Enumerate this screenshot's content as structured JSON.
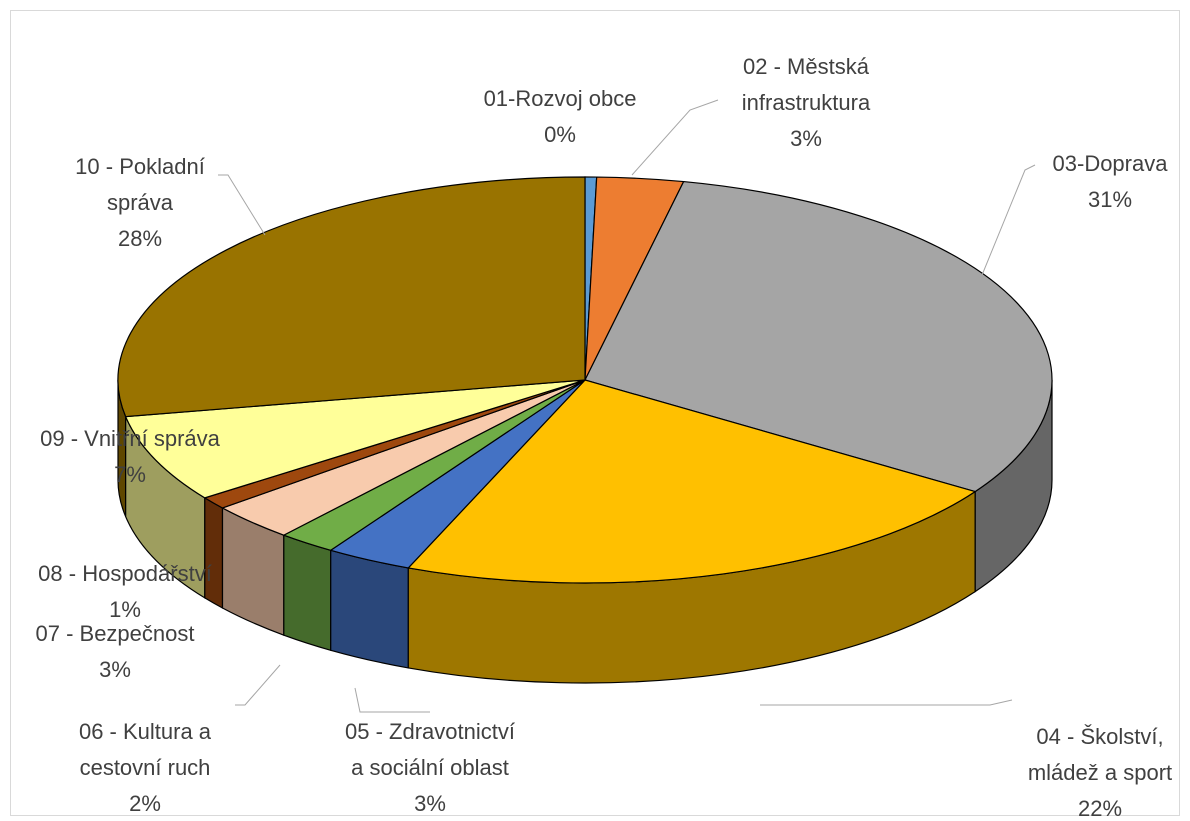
{
  "chart_data": {
    "type": "pie3d",
    "categories": [
      "01-Rozvoj obce",
      "02 - Městská\ninfrastruktura",
      "03-Doprava",
      "04 - Školství,\nmládež a sport",
      "05 - Zdravotnictví\na sociální oblast",
      "06 - Kultura a\ncestovní ruch",
      "07 - Bezpečnost",
      "08 - Hospodářství",
      "09 - Vnitřní správa",
      "10 - Pokladní\nspráva"
    ],
    "values": [
      0.4,
      3,
      31,
      22,
      3,
      2,
      3,
      1,
      7,
      28
    ],
    "value_labels": [
      "0%",
      "3%",
      "31%",
      "22%",
      "3%",
      "2%",
      "3%",
      "1%",
      "7%",
      "28%"
    ],
    "colors": [
      "#5b9bd5",
      "#ed7d31",
      "#a5a5a5",
      "#ffc000",
      "#4472c4",
      "#70ad47",
      "#f8cbad",
      "#9e480e",
      "#ffff99",
      "#997300"
    ]
  }
}
